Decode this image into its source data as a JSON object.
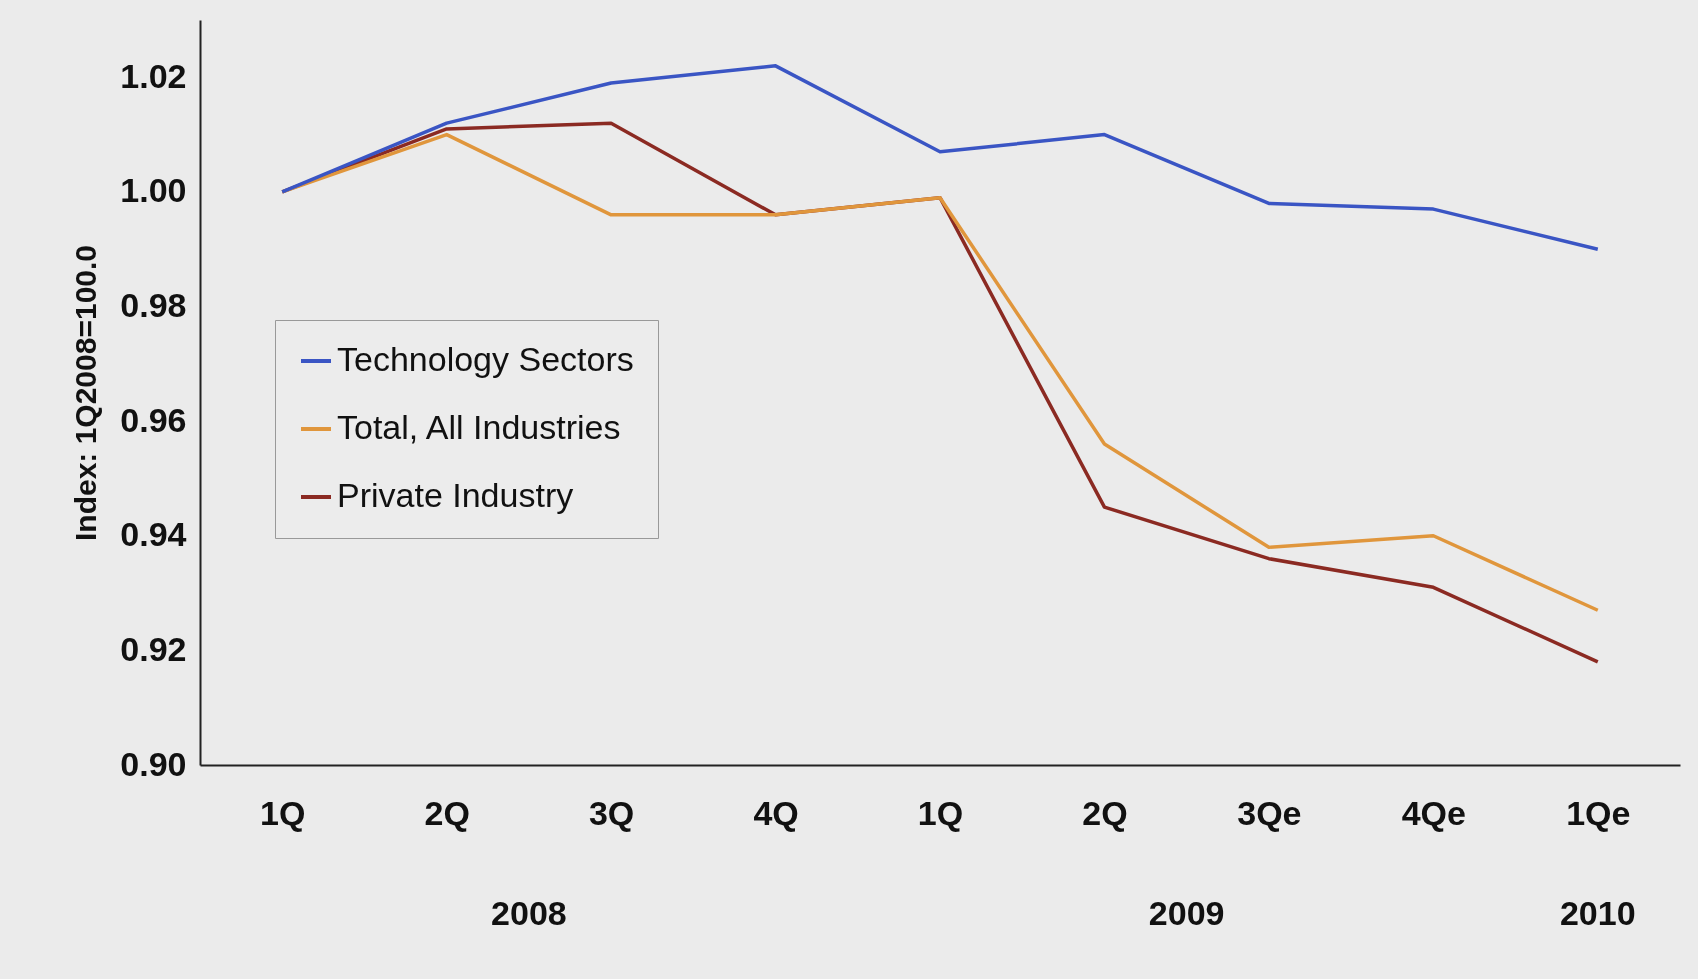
{
  "chart_data": {
    "type": "line",
    "ylabel": "Index: 1Q2008=100.0",
    "categories": [
      "1Q",
      "2Q",
      "3Q",
      "4Q",
      "1Q",
      "2Q",
      "3Qe",
      "4Qe",
      "1Qe"
    ],
    "series": [
      {
        "name": "Technology Sectors",
        "color": "#3a55c4",
        "values": [
          1.0,
          1.012,
          1.019,
          1.022,
          1.007,
          1.01,
          0.998,
          0.997,
          0.99
        ]
      },
      {
        "name": "Total, All Industries",
        "color": "#e0963c",
        "values": [
          1.0,
          1.01,
          0.996,
          0.996,
          0.999,
          0.956,
          0.938,
          0.94,
          0.927
        ]
      },
      {
        "name": "Private Industry",
        "color": "#8b2a22",
        "values": [
          1.0,
          1.011,
          1.012,
          0.996,
          0.999,
          0.945,
          0.936,
          0.931,
          0.918
        ]
      }
    ],
    "ylim": [
      0.9,
      1.03
    ],
    "yticks": [
      {
        "value": 0.9,
        "label": "0.90"
      },
      {
        "value": 0.92,
        "label": "0.92"
      },
      {
        "value": 0.94,
        "label": "0.94"
      },
      {
        "value": 0.96,
        "label": "0.96"
      },
      {
        "value": 0.98,
        "label": "0.98"
      },
      {
        "value": 1.0,
        "label": "1.00"
      },
      {
        "value": 1.02,
        "label": "1.02"
      }
    ],
    "annotations": [
      "2008",
      "2009",
      "2010"
    ],
    "legend": "left",
    "grid": false
  }
}
